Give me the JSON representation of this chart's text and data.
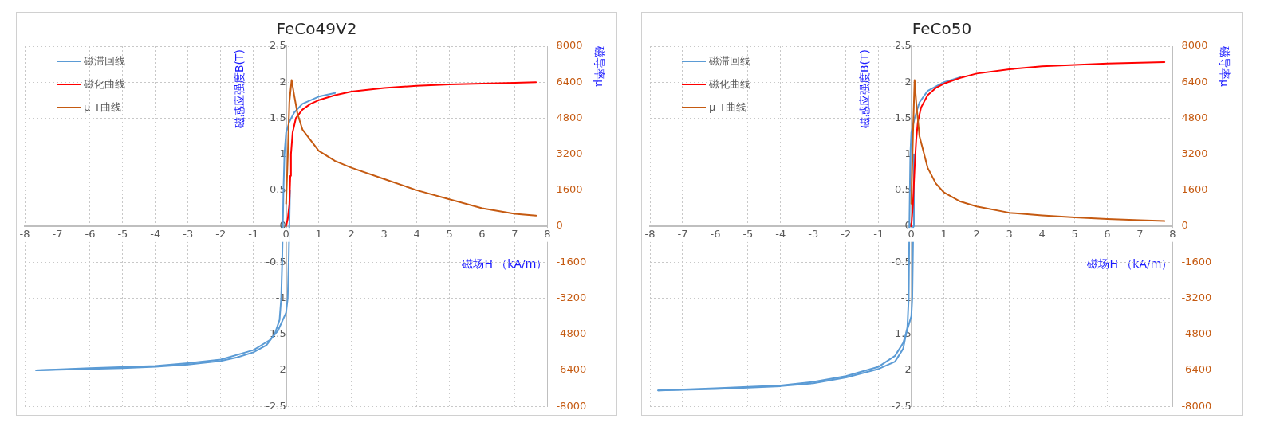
{
  "chart_data": [
    {
      "type": "line",
      "title": "FeCo49V2",
      "xlabel": "磁场H （kA/m）",
      "ylabel": "磁感应强度B(T)",
      "y2label": "磁导率μ",
      "xlim": [
        -8,
        8
      ],
      "xticks": [
        -8,
        -7,
        -6,
        -5,
        -4,
        -3,
        -2,
        -1,
        0,
        1,
        2,
        3,
        4,
        5,
        6,
        7,
        8
      ],
      "ylim": [
        -2.5,
        2.5
      ],
      "yticks": [
        -2.5,
        -2,
        -1.5,
        -1,
        -0.5,
        0,
        0.5,
        1,
        1.5,
        2,
        2.5
      ],
      "y2lim": [
        -8000,
        8000
      ],
      "y2ticks": [
        -8000,
        -6400,
        -4800,
        -3200,
        -1600,
        0,
        1600,
        3200,
        4800,
        6400,
        8000
      ],
      "grid": true,
      "legend": "top left",
      "marker": "none",
      "series": [
        {
          "name": "磁滞回线",
          "color": "#5b9bd5",
          "x": [
            1.5,
            1,
            0.5,
            0.25,
            0.1,
            0,
            -0.05,
            -0.08,
            -0.1,
            -0.12,
            -0.15,
            -0.2,
            -0.35,
            -0.6,
            -1,
            -1.5,
            -2,
            -3,
            -4,
            -5,
            -6,
            -7.65
          ],
          "values": [
            1.85,
            1.8,
            1.7,
            1.58,
            1.45,
            1.3,
            1,
            0.5,
            0,
            -0.5,
            -1,
            -1.3,
            -1.5,
            -1.65,
            -1.75,
            -1.82,
            -1.87,
            -1.92,
            -1.95,
            -1.97,
            -1.98,
            -2
          ]
        },
        {
          "color": "#5b9bd5",
          "x": [
            -7.65,
            -6,
            -4,
            -3,
            -2,
            -1,
            -0.5,
            -0.25,
            -0.1,
            0,
            0.05,
            0.08,
            0.1,
            0.12
          ],
          "values": [
            -2,
            -1.97,
            -1.94,
            -1.9,
            -1.85,
            -1.72,
            -1.58,
            -1.45,
            -1.3,
            -1.2,
            -1,
            -0.5,
            0,
            0.5
          ]
        },
        {
          "name": "磁化曲线",
          "color": "#ff0000",
          "x": [
            0,
            0.05,
            0.1,
            0.13,
            0.15,
            0.2,
            0.3,
            0.5,
            0.75,
            1,
            1.5,
            2,
            3,
            4,
            5,
            6,
            7,
            7.65
          ],
          "values": [
            0,
            0.1,
            0.3,
            0.7,
            1,
            1.3,
            1.5,
            1.62,
            1.7,
            1.75,
            1.82,
            1.87,
            1.92,
            1.95,
            1.97,
            1.98,
            1.99,
            2
          ]
        },
        {
          "name": "μ-T曲线",
          "color": "#c55a11",
          "axis": "y2",
          "x": [
            0,
            0.05,
            0.1,
            0.17,
            0.25,
            0.35,
            0.5,
            1,
            1.5,
            2,
            3,
            4,
            5,
            6,
            7,
            7.65
          ],
          "values": [
            1000,
            3000,
            5500,
            6500,
            5800,
            5000,
            4300,
            3350,
            2900,
            2600,
            2100,
            1600,
            1200,
            800,
            550,
            470
          ]
        }
      ]
    },
    {
      "type": "line",
      "title": "FeCo50",
      "xlabel": "磁场H （kA/m）",
      "ylabel": "磁感应强度B(T)",
      "y2label": "磁导率μ",
      "xlim": [
        -8,
        8
      ],
      "xticks": [
        -8,
        -7,
        -6,
        -5,
        -4,
        -3,
        -2,
        -1,
        0,
        1,
        2,
        3,
        4,
        5,
        6,
        7,
        8
      ],
      "ylim": [
        -2.5,
        2.5
      ],
      "yticks": [
        -2.5,
        -2,
        -1.5,
        -1,
        -0.5,
        0,
        0.5,
        1,
        1.5,
        2,
        2.5
      ],
      "y2lim": [
        -8000,
        8000
      ],
      "y2ticks": [
        -8000,
        -6400,
        -4800,
        -3200,
        -1600,
        0,
        1600,
        3200,
        4800,
        6400,
        8000
      ],
      "grid": true,
      "legend": "top left",
      "marker": "none",
      "series": [
        {
          "name": "磁滞回线",
          "color": "#5b9bd5",
          "x": [
            1.5,
            1,
            0.5,
            0.25,
            0.1,
            0,
            -0.03,
            -0.06,
            -0.08,
            -0.12,
            -0.25,
            -0.5,
            -1,
            -2,
            -3,
            -4,
            -5,
            -6,
            -7.75
          ],
          "values": [
            2.07,
            2,
            1.88,
            1.72,
            1.5,
            1.3,
            1,
            0,
            -1,
            -1.4,
            -1.7,
            -1.88,
            -1.98,
            -2.1,
            -2.18,
            -2.22,
            -2.24,
            -2.26,
            -2.28
          ]
        },
        {
          "color": "#5b9bd5",
          "x": [
            -7.75,
            -6,
            -4,
            -3,
            -2,
            -1,
            -0.5,
            -0.25,
            -0.1,
            0,
            0.03,
            0.06,
            0.08
          ],
          "values": [
            -2.28,
            -2.25,
            -2.21,
            -2.16,
            -2.08,
            -1.95,
            -1.8,
            -1.62,
            -1.4,
            -1.25,
            -1,
            0,
            1
          ]
        },
        {
          "name": "磁化曲线",
          "color": "#ff0000",
          "x": [
            0,
            0.05,
            0.1,
            0.15,
            0.2,
            0.3,
            0.5,
            0.75,
            1,
            1.5,
            2,
            3,
            4,
            5,
            6,
            7,
            7.75
          ],
          "values": [
            0,
            0.3,
            0.8,
            1.2,
            1.45,
            1.65,
            1.82,
            1.92,
            1.98,
            2.06,
            2.12,
            2.18,
            2.22,
            2.24,
            2.26,
            2.27,
            2.28
          ]
        },
        {
          "name": "μ-T曲线",
          "color": "#c55a11",
          "axis": "y2",
          "x": [
            0,
            0.05,
            0.1,
            0.15,
            0.25,
            0.5,
            0.75,
            1,
            1.5,
            2,
            3,
            4,
            5,
            6,
            7,
            7.75
          ],
          "values": [
            1000,
            4000,
            6500,
            5500,
            4000,
            2600,
            1900,
            1500,
            1100,
            880,
            600,
            480,
            390,
            320,
            270,
            230
          ]
        }
      ]
    }
  ]
}
